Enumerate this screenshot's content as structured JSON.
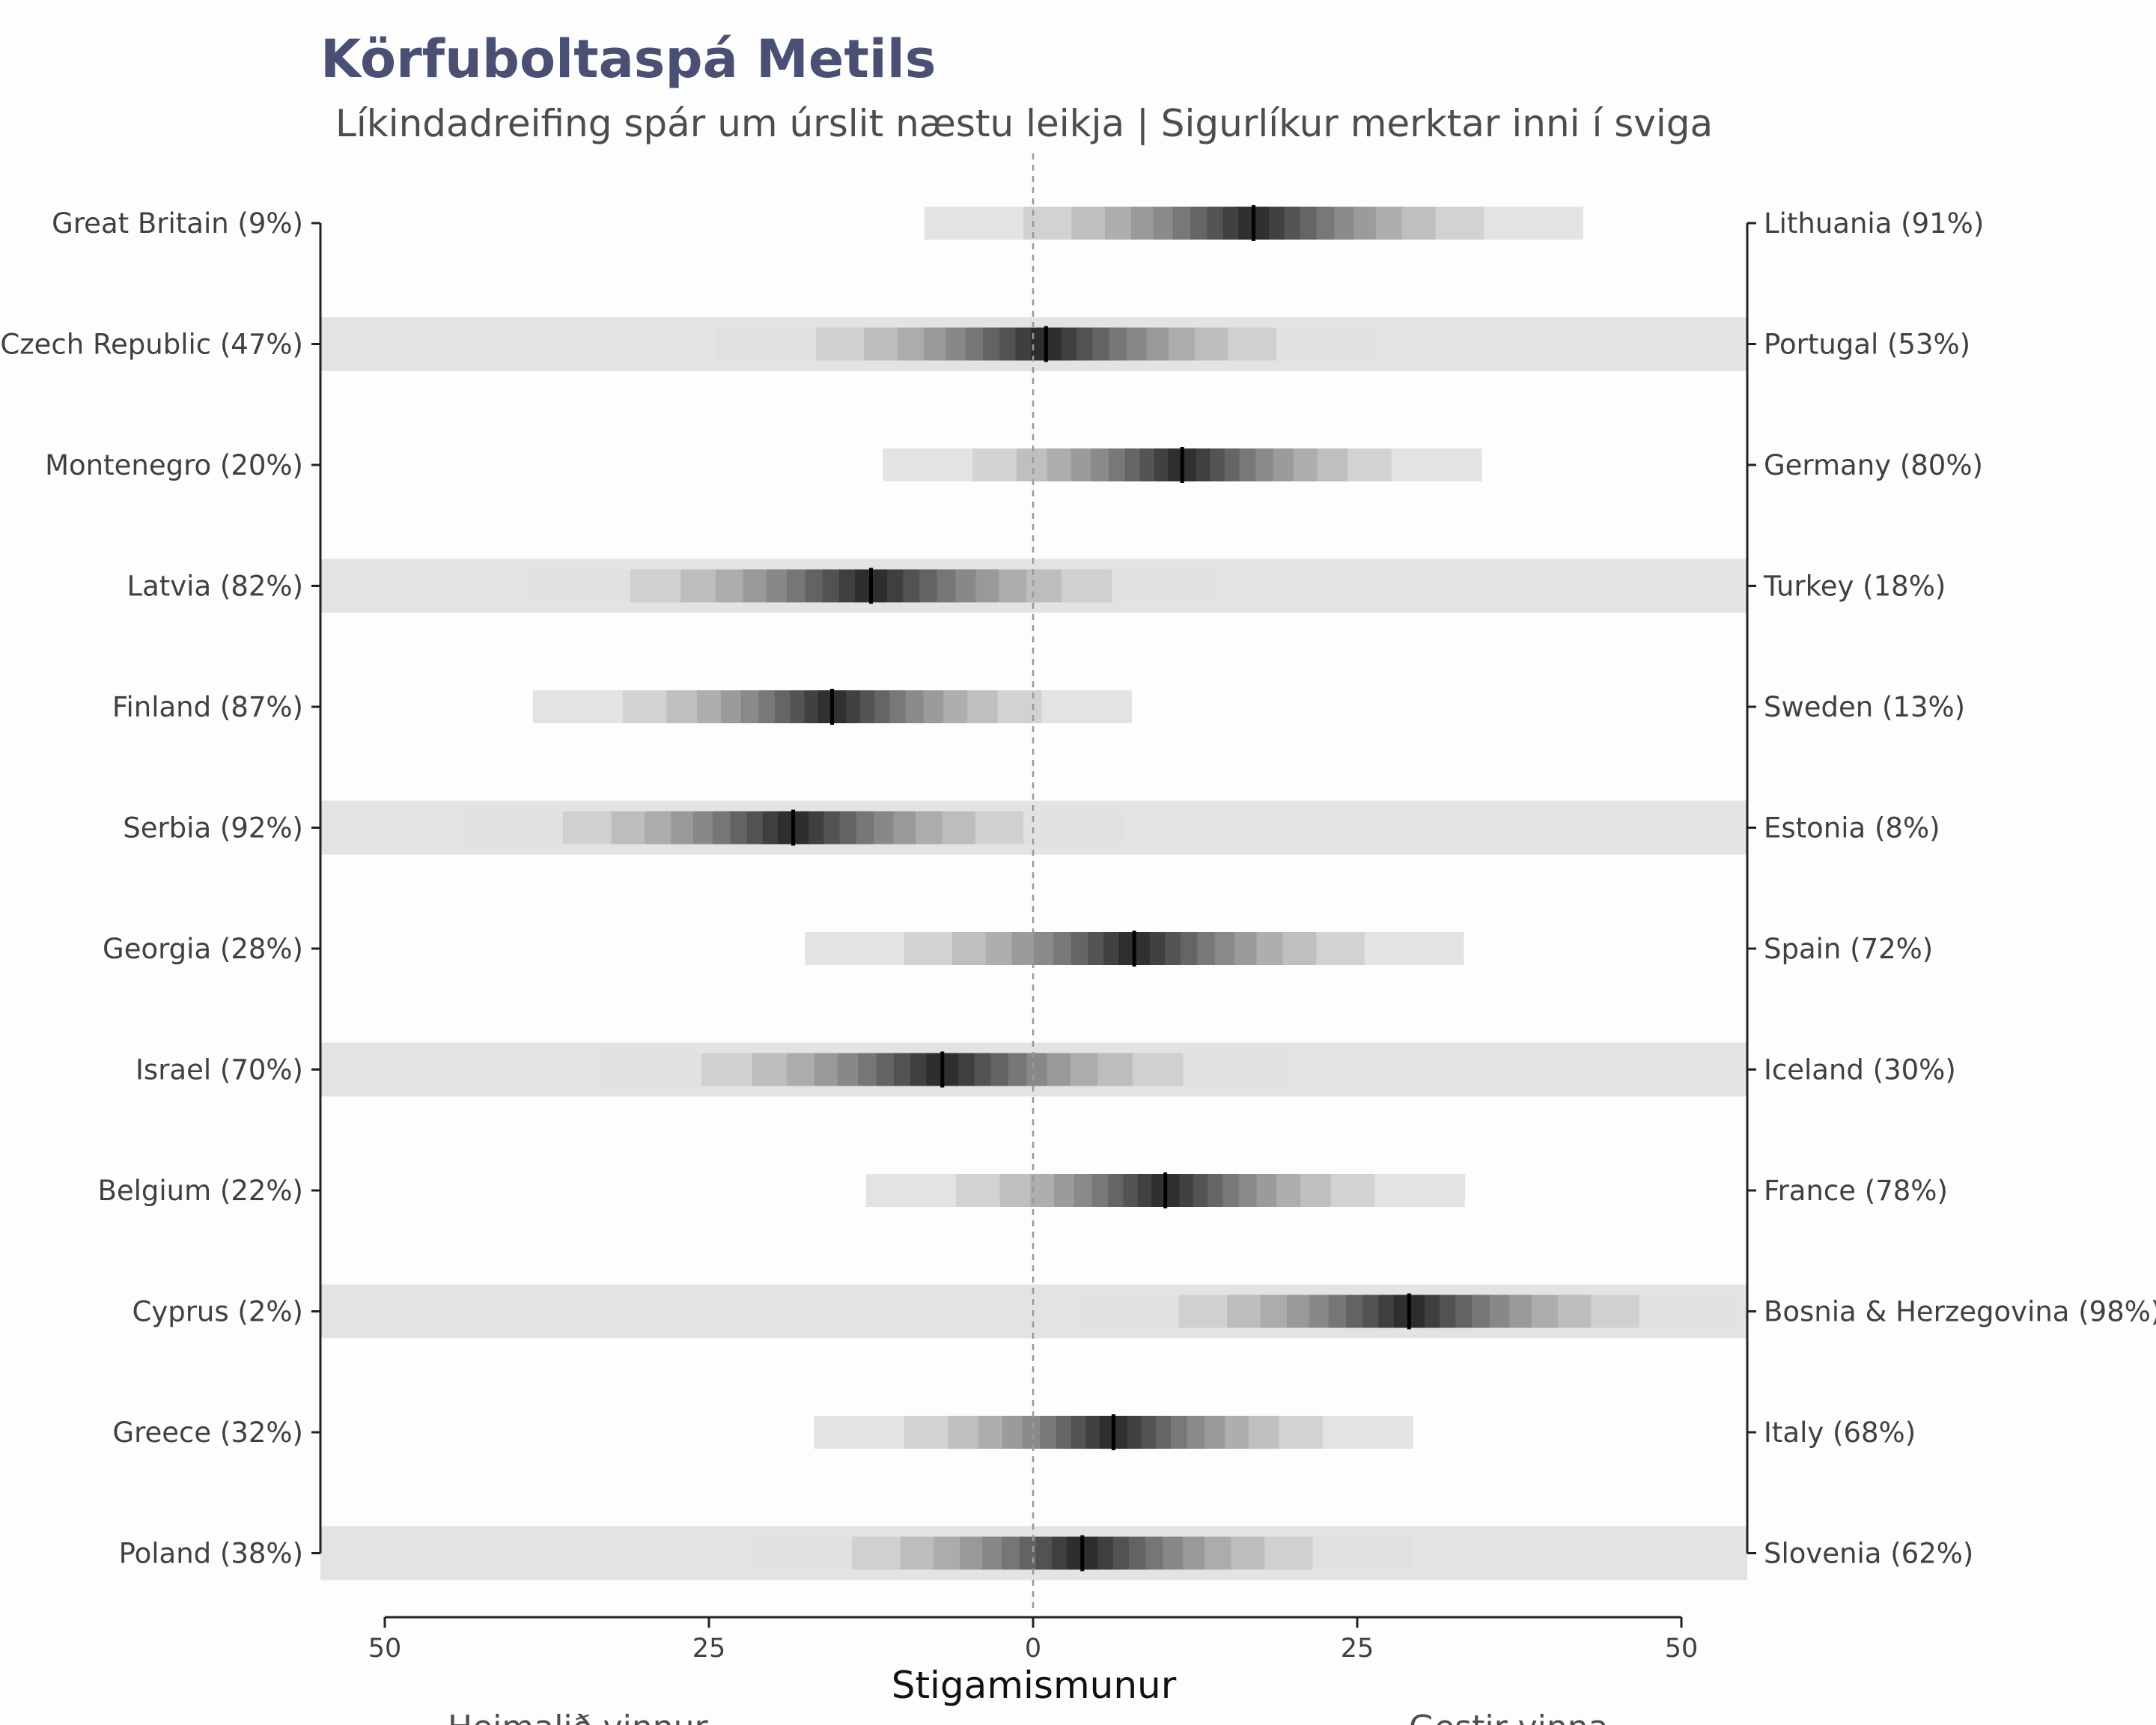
{
  "chart_data": {
    "type": "heatmap",
    "title": "Körfuboltaspá Metils",
    "subtitle": "Líkindadreifing spár um úrslit næstu leikja | Sigurlíkur merktar inni í sviga",
    "xlabel": "Stigamismunur",
    "xlim": [
      -50,
      50
    ],
    "x_ticks": [
      {
        "value": -50,
        "label": "50"
      },
      {
        "value": -25,
        "label": "25"
      },
      {
        "value": 0,
        "label": "0"
      },
      {
        "value": 25,
        "label": "25"
      },
      {
        "value": 50,
        "label": "50"
      }
    ],
    "bottom_left_label": "Heimalið vinnur",
    "bottom_right_label": "Gestir vinna",
    "reference_line": 0,
    "games": [
      {
        "left": "Great Britain (9%)",
        "right": "Lithuania (91%)",
        "median": 17,
        "spread": 11
      },
      {
        "left": "Czech Republic (47%)",
        "right": "Portugal (53%)",
        "median": 1,
        "spread": 11
      },
      {
        "left": "Montenegro (20%)",
        "right": "Germany (80%)",
        "median": 11.5,
        "spread": 10
      },
      {
        "left": "Latvia (82%)",
        "right": "Turkey (18%)",
        "median": -12.5,
        "spread": 11.5
      },
      {
        "left": "Finland (87%)",
        "right": "Sweden (13%)",
        "median": -15.5,
        "spread": 10
      },
      {
        "left": "Serbia (92%)",
        "right": "Estonia (8%)",
        "median": -18.5,
        "spread": 11
      },
      {
        "left": "Georgia (28%)",
        "right": "Spain (72%)",
        "median": 7.8,
        "spread": 11
      },
      {
        "left": "Israel (70%)",
        "right": "Iceland (30%)",
        "median": -7,
        "spread": 11.5
      },
      {
        "left": "Belgium (22%)",
        "right": "France (78%)",
        "median": 10.2,
        "spread": 10
      },
      {
        "left": "Cyprus (2%)",
        "right": "Bosnia & Herzegovina (98%)",
        "median": 29,
        "spread": 11
      },
      {
        "left": "Greece (32%)",
        "right": "Italy (68%)",
        "median": 6.2,
        "spread": 10
      },
      {
        "left": "Poland (38%)",
        "right": "Slovenia (62%)",
        "median": 3.8,
        "spread": 11
      }
    ]
  }
}
